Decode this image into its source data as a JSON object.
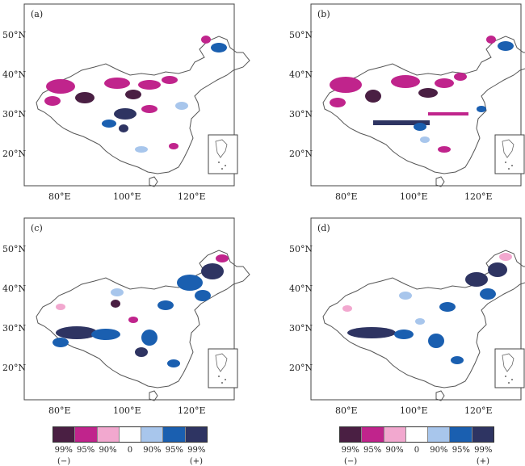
{
  "panels": [
    {
      "label": "(a)"
    },
    {
      "label": "(b)"
    },
    {
      "label": "(c)"
    },
    {
      "label": "(d)"
    }
  ],
  "axes": {
    "lat_ticks": [
      "50°N",
      "40°N",
      "30°N",
      "20°N"
    ],
    "lon_ticks": [
      "80°E",
      "100°E",
      "120°E"
    ]
  },
  "legend": {
    "labels": [
      "99%",
      "95%",
      "90%",
      "0",
      "90%",
      "95%",
      "99%"
    ],
    "negative_sign": "(−)",
    "positive_sign": "(+)",
    "colors": [
      "#4a1f43",
      "#c0248c",
      "#f2a8cf",
      "#ffffff",
      "#a8c6ec",
      "#1a5fb0",
      "#2e3462"
    ]
  },
  "colors": {
    "neg99": "#4a1f43",
    "neg95": "#c0248c",
    "neg90": "#f2a8cf",
    "pos90": "#a8c6ec",
    "pos95": "#1a5fb0",
    "pos99": "#2e3462",
    "outline": "#555555",
    "frame": "#444444"
  }
}
